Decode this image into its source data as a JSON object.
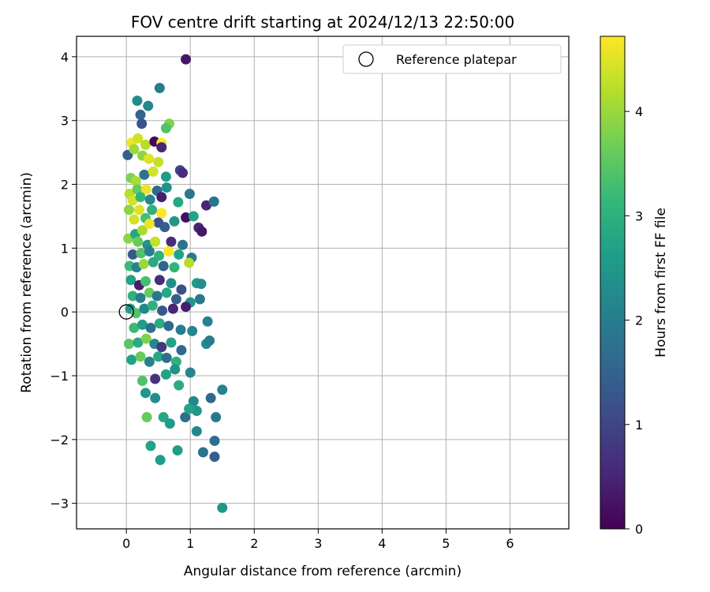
{
  "chart_data": {
    "type": "scatter",
    "title": "FOV centre drift starting at 2024/12/13 22:50:00",
    "xlabel": "Angular distance from reference (arcmin)",
    "ylabel": "Rotation from reference (arcmin)",
    "xlim": [
      -0.78,
      6.92
    ],
    "ylim": [
      -3.4,
      4.32
    ],
    "xticks": [
      "0",
      "1",
      "2",
      "3",
      "4",
      "5",
      "6"
    ],
    "yticks": [
      "−3",
      "−2",
      "−1",
      "0",
      "1",
      "2",
      "3",
      "4"
    ],
    "grid": true,
    "legend": {
      "position": "top-right",
      "entries": [
        "Reference platepar"
      ]
    },
    "colorbar": {
      "label": "Hours from first FF file",
      "range": [
        0,
        4.72
      ],
      "ticks": [
        "0",
        "1",
        "2",
        "3",
        "4"
      ],
      "colormap": "viridis",
      "colors": [
        "#440154",
        "#482777",
        "#3e4989",
        "#31688e",
        "#26828e",
        "#1f9e89",
        "#35b779",
        "#6ece58",
        "#b5de2b",
        "#fde725"
      ]
    },
    "reference": {
      "x": 0,
      "y": 0,
      "label": "Reference platepar"
    },
    "points": [
      [
        0.93,
        3.96,
        0.3
      ],
      [
        0.52,
        3.51,
        2.0
      ],
      [
        0.17,
        3.31,
        2.3
      ],
      [
        0.34,
        3.23,
        2.2
      ],
      [
        0.22,
        3.09,
        1.5
      ],
      [
        0.67,
        2.95,
        3.8
      ],
      [
        0.62,
        2.88,
        3.4
      ],
      [
        0.24,
        2.95,
        1.2
      ],
      [
        0.08,
        2.65,
        4.6
      ],
      [
        0.18,
        2.72,
        4.4
      ],
      [
        0.3,
        2.62,
        4.2
      ],
      [
        0.44,
        2.67,
        0.1
      ],
      [
        0.55,
        2.65,
        4.7
      ],
      [
        0.55,
        2.58,
        0.5
      ],
      [
        0.02,
        2.46,
        1.4
      ],
      [
        0.12,
        2.55,
        4.0
      ],
      [
        0.25,
        2.45,
        3.9
      ],
      [
        0.35,
        2.4,
        4.5
      ],
      [
        0.5,
        2.35,
        4.3
      ],
      [
        0.84,
        2.22,
        1.0
      ],
      [
        0.88,
        2.18,
        0.6
      ],
      [
        0.07,
        2.1,
        3.8
      ],
      [
        0.15,
        2.05,
        4.1
      ],
      [
        0.28,
        2.15,
        1.8
      ],
      [
        0.42,
        2.2,
        4.4
      ],
      [
        0.62,
        2.12,
        2.6
      ],
      [
        0.05,
        1.85,
        4.2
      ],
      [
        0.17,
        1.92,
        3.6
      ],
      [
        0.31,
        1.92,
        4.6
      ],
      [
        0.48,
        1.9,
        1.6
      ],
      [
        0.63,
        1.95,
        2.4
      ],
      [
        0.99,
        1.85,
        1.9
      ],
      [
        0.1,
        1.75,
        4.4
      ],
      [
        0.22,
        1.8,
        3.1
      ],
      [
        0.37,
        1.76,
        2.2
      ],
      [
        0.55,
        1.8,
        0.4
      ],
      [
        0.81,
        1.72,
        2.8
      ],
      [
        1.25,
        1.67,
        0.5
      ],
      [
        1.37,
        1.73,
        1.8
      ],
      [
        0.04,
        1.6,
        3.9
      ],
      [
        0.2,
        1.6,
        4.5
      ],
      [
        0.4,
        1.6,
        3.0
      ],
      [
        0.55,
        1.55,
        4.7
      ],
      [
        0.93,
        1.48,
        0.2
      ],
      [
        1.05,
        1.5,
        2.7
      ],
      [
        0.12,
        1.45,
        4.4
      ],
      [
        0.3,
        1.47,
        3.3
      ],
      [
        0.5,
        1.4,
        1.2
      ],
      [
        0.75,
        1.42,
        2.5
      ],
      [
        0.03,
        1.15,
        3.9
      ],
      [
        0.14,
        1.22,
        2.8
      ],
      [
        0.25,
        1.28,
        4.1
      ],
      [
        0.36,
        1.38,
        4.6
      ],
      [
        0.6,
        1.33,
        1.4
      ],
      [
        1.13,
        1.32,
        0.5
      ],
      [
        1.18,
        1.26,
        0.3
      ],
      [
        0.18,
        1.1,
        3.6
      ],
      [
        0.33,
        1.05,
        2.4
      ],
      [
        0.45,
        1.1,
        4.3
      ],
      [
        0.7,
        1.1,
        0.6
      ],
      [
        0.88,
        1.05,
        1.8
      ],
      [
        0.1,
        0.9,
        1.3
      ],
      [
        0.23,
        0.92,
        3.4
      ],
      [
        0.36,
        0.95,
        2.0
      ],
      [
        0.51,
        0.88,
        3.0
      ],
      [
        0.66,
        0.95,
        4.7
      ],
      [
        0.82,
        0.9,
        2.7
      ],
      [
        1.02,
        0.85,
        1.9
      ],
      [
        0.05,
        0.72,
        3.2
      ],
      [
        0.16,
        0.7,
        2.1
      ],
      [
        0.27,
        0.75,
        4.0
      ],
      [
        0.42,
        0.78,
        2.9
      ],
      [
        0.58,
        0.72,
        1.5
      ],
      [
        0.75,
        0.7,
        3.1
      ],
      [
        0.98,
        0.77,
        4.2
      ],
      [
        0.07,
        0.5,
        2.7
      ],
      [
        0.2,
        0.42,
        0.4
      ],
      [
        0.3,
        0.48,
        3.3
      ],
      [
        0.52,
        0.5,
        0.6
      ],
      [
        0.7,
        0.45,
        2.3
      ],
      [
        0.86,
        0.35,
        1.2
      ],
      [
        1.1,
        0.45,
        2.6
      ],
      [
        1.17,
        0.44,
        2.3
      ],
      [
        0.1,
        0.25,
        3.0
      ],
      [
        0.22,
        0.22,
        2.0
      ],
      [
        0.36,
        0.3,
        3.6
      ],
      [
        0.48,
        0.25,
        1.9
      ],
      [
        0.63,
        0.3,
        2.8
      ],
      [
        0.78,
        0.2,
        1.4
      ],
      [
        1.0,
        0.15,
        2.4
      ],
      [
        1.15,
        0.2,
        1.9
      ],
      [
        0.06,
        0.05,
        2.5
      ],
      [
        0.15,
        -0.02,
        3.4
      ],
      [
        0.28,
        0.05,
        2.2
      ],
      [
        0.41,
        0.1,
        3.0
      ],
      [
        0.56,
        0.02,
        1.3
      ],
      [
        0.73,
        0.05,
        0.5
      ],
      [
        0.93,
        0.08,
        0.4
      ],
      [
        1.27,
        -0.15,
        2.1
      ],
      [
        0.12,
        -0.25,
        3.2
      ],
      [
        0.25,
        -0.2,
        2.6
      ],
      [
        0.38,
        -0.25,
        1.7
      ],
      [
        0.52,
        -0.18,
        2.9
      ],
      [
        0.66,
        -0.22,
        1.6
      ],
      [
        0.85,
        -0.28,
        2.0
      ],
      [
        1.03,
        -0.3,
        2.2
      ],
      [
        0.04,
        -0.5,
        3.5
      ],
      [
        0.18,
        -0.48,
        2.9
      ],
      [
        0.31,
        -0.42,
        3.8
      ],
      [
        0.44,
        -0.5,
        2.2
      ],
      [
        0.55,
        -0.55,
        0.8
      ],
      [
        0.7,
        -0.48,
        2.7
      ],
      [
        0.86,
        -0.6,
        1.6
      ],
      [
        1.25,
        -0.5,
        2.3
      ],
      [
        1.3,
        -0.45,
        2.0
      ],
      [
        0.08,
        -0.75,
        2.7
      ],
      [
        0.22,
        -0.7,
        3.6
      ],
      [
        0.36,
        -0.78,
        2.1
      ],
      [
        0.5,
        -0.7,
        2.8
      ],
      [
        0.63,
        -0.72,
        1.7
      ],
      [
        0.78,
        -0.78,
        3.0
      ],
      [
        0.25,
        -1.08,
        3.4
      ],
      [
        0.45,
        -1.05,
        0.7
      ],
      [
        0.62,
        -0.98,
        2.7
      ],
      [
        0.76,
        -0.9,
        2.4
      ],
      [
        1.0,
        -0.95,
        2.2
      ],
      [
        0.3,
        -1.27,
        2.5
      ],
      [
        0.45,
        -1.35,
        2.3
      ],
      [
        0.82,
        -1.15,
        2.9
      ],
      [
        1.05,
        -1.4,
        2.2
      ],
      [
        1.1,
        -1.55,
        2.5
      ],
      [
        1.32,
        -1.35,
        1.6
      ],
      [
        1.5,
        -1.22,
        2.1
      ],
      [
        0.32,
        -1.65,
        3.6
      ],
      [
        0.58,
        -1.65,
        2.8
      ],
      [
        0.68,
        -1.75,
        2.6
      ],
      [
        0.92,
        -1.65,
        1.7
      ],
      [
        0.98,
        -1.52,
        2.7
      ],
      [
        1.4,
        -1.65,
        1.9
      ],
      [
        1.1,
        -1.87,
        2.2
      ],
      [
        0.38,
        -2.1,
        2.7
      ],
      [
        0.53,
        -2.32,
        2.6
      ],
      [
        0.8,
        -2.17,
        2.6
      ],
      [
        1.2,
        -2.2,
        1.8
      ],
      [
        1.38,
        -2.02,
        1.7
      ],
      [
        1.38,
        -2.27,
        1.4
      ],
      [
        1.5,
        -3.07,
        2.5
      ]
    ]
  }
}
